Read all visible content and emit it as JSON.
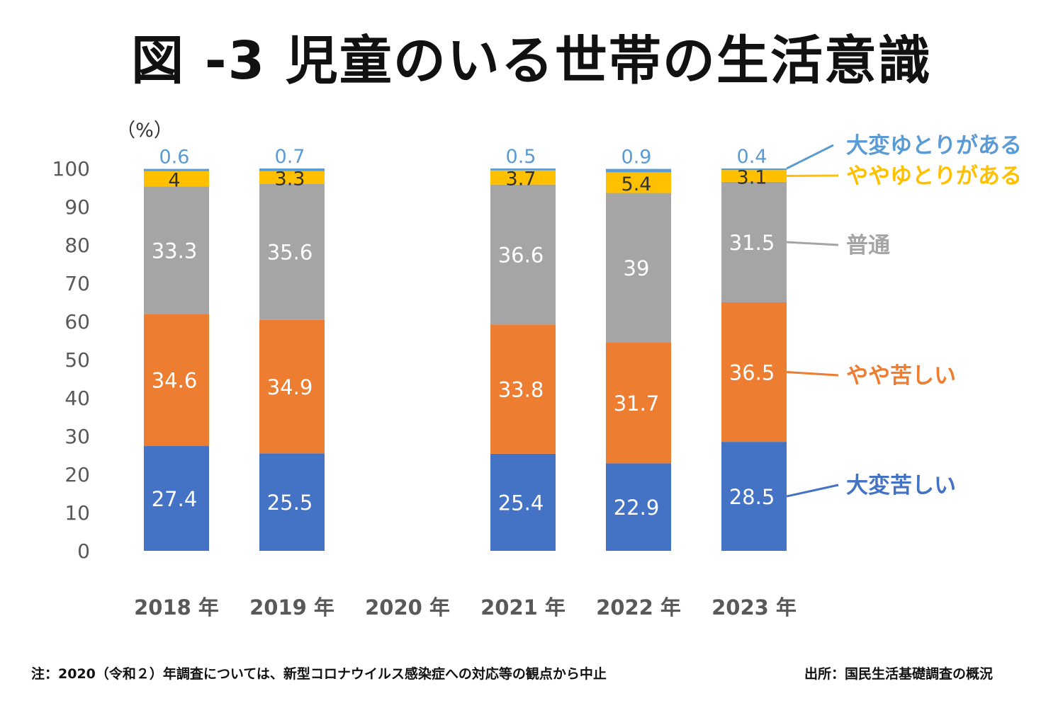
{
  "chart_data": {
    "type": "bar",
    "stacked": true,
    "title": "図 -3 児童のいる世帯の生活意識",
    "y_unit_label": "（%）",
    "ylim": [
      0,
      100
    ],
    "yticks": [
      0,
      10,
      20,
      30,
      40,
      50,
      60,
      70,
      80,
      90,
      100
    ],
    "categories": [
      "2018 年",
      "2019 年",
      "2020 年",
      "2021 年",
      "2022 年",
      "2023 年"
    ],
    "series": [
      {
        "name": "大変苦しい",
        "color": "#4472C4",
        "label_color": "#ffffff",
        "values": [
          27.4,
          25.5,
          null,
          25.4,
          22.9,
          28.5
        ]
      },
      {
        "name": "やや苦しい",
        "color": "#ED7D31",
        "label_color": "#ffffff",
        "values": [
          34.6,
          34.9,
          null,
          33.8,
          31.7,
          36.5
        ]
      },
      {
        "name": "普通",
        "color": "#A5A5A5",
        "label_color": "#ffffff",
        "values": [
          33.3,
          35.6,
          null,
          36.6,
          39,
          31.5
        ]
      },
      {
        "name": "ややゆとりがある",
        "color": "#FFC000",
        "label_color": "#333333",
        "values": [
          4,
          3.3,
          null,
          3.7,
          5.4,
          3.1
        ]
      },
      {
        "name": "大変ゆとりがある",
        "color": "#5B9BD5",
        "label_color": "#5B9BD5",
        "values": [
          0.6,
          0.7,
          null,
          0.5,
          0.9,
          0.4
        ]
      }
    ],
    "legend_placement": "right (labels aligned to last bar)",
    "grid": false
  },
  "notes": {
    "left": "注：2020（令和２）年調査については、新型コロナウイルス感染症への対応等の観点から中止",
    "right": "出所：国民生活基礎調査の概況"
  },
  "colors": {
    "axis_text": "#595959",
    "title_text": "#111111"
  }
}
